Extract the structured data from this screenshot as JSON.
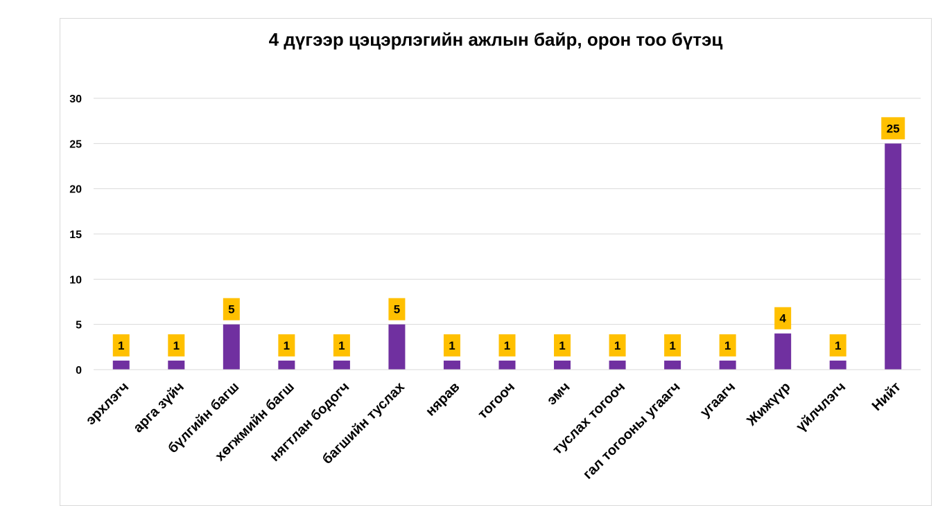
{
  "chart_data": {
    "type": "bar",
    "title": "4 дүгээр цэцэрлэгийн ажлын байр, орон тоо бүтэц",
    "categories": [
      "эрхлэгч",
      "арга зүйч",
      "бүлгийн багш",
      "хөгжмийн багш",
      "нягтлан бодогч",
      "багшийн туслах",
      "нярав",
      "тогооч",
      "эмч",
      "туслах тогооч",
      "гал тогооны угаагч",
      "угаагч",
      "Жижүүр",
      "үйлчлэгч",
      "Нийт"
    ],
    "values": [
      1,
      1,
      5,
      1,
      1,
      5,
      1,
      1,
      1,
      1,
      1,
      1,
      4,
      1,
      25
    ],
    "ylim": [
      0,
      30
    ],
    "yticks": [
      0,
      5,
      10,
      15,
      20,
      25,
      30
    ],
    "grid": true,
    "legend": "none",
    "bar_color": "#7030a0",
    "label_bg_color": "#ffc000",
    "gridline_color": "#d9d9d9"
  }
}
